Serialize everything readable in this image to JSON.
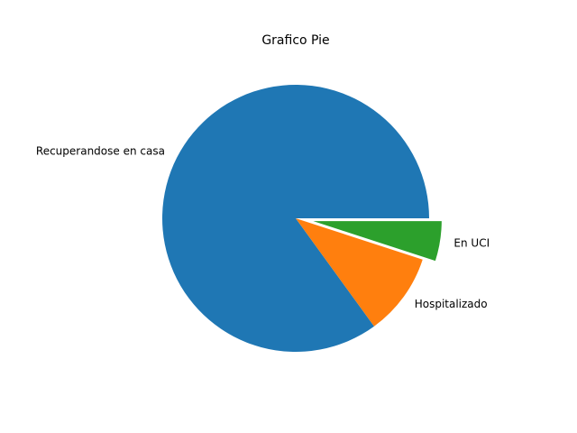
{
  "chart_data": {
    "type": "pie",
    "title": "Grafico Pie",
    "labels": [
      "Recuperandose en casa",
      "Hospitalizado",
      "En UCI"
    ],
    "values": [
      85,
      10,
      5
    ],
    "colors": [
      "#1f77b4",
      "#ff7f0e",
      "#2ca02c"
    ],
    "explode": [
      0,
      0,
      0.1
    ],
    "start_angle": 0,
    "direction": "counterclockwise",
    "legend": "none"
  }
}
